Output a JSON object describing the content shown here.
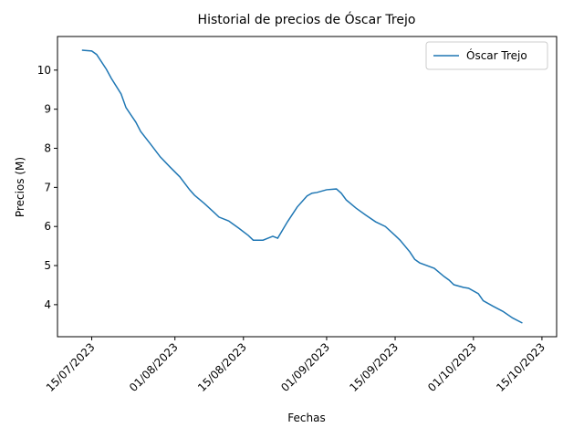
{
  "chart_data": {
    "type": "line",
    "title": "Historial de precios de Óscar Trejo",
    "x_label": "Fechas",
    "y_label": "Precios (M)",
    "x": [
      "13/07/2023",
      "15/07/2023",
      "16/07/2023",
      "18/07/2023",
      "19/07/2023",
      "21/07/2023",
      "22/07/2023",
      "24/07/2023",
      "25/07/2023",
      "27/07/2023",
      "29/07/2023",
      "31/07/2023",
      "02/08/2023",
      "04/08/2023",
      "05/08/2023",
      "07/08/2023",
      "09/08/2023",
      "10/08/2023",
      "12/08/2023",
      "14/08/2023",
      "16/08/2023",
      "17/08/2023",
      "19/08/2023",
      "20/08/2023",
      "21/08/2023",
      "22/08/2023",
      "24/08/2023",
      "26/08/2023",
      "28/08/2023",
      "29/08/2023",
      "30/08/2023",
      "01/09/2023",
      "03/09/2023",
      "04/09/2023",
      "05/09/2023",
      "07/09/2023",
      "09/09/2023",
      "11/09/2023",
      "13/09/2023",
      "15/09/2023",
      "16/09/2023",
      "18/09/2023",
      "19/09/2023",
      "20/09/2023",
      "23/09/2023",
      "25/09/2023",
      "26/09/2023",
      "27/09/2023",
      "29/09/2023",
      "30/09/2023",
      "02/10/2023",
      "03/10/2023",
      "05/10/2023",
      "07/10/2023",
      "09/10/2023",
      "11/10/2023"
    ],
    "series": [
      {
        "name": "Óscar Trejo",
        "color": "#1f77b4",
        "values": [
          10.51,
          10.49,
          10.4,
          10.02,
          9.79,
          9.39,
          9.04,
          8.67,
          8.43,
          8.11,
          7.78,
          7.52,
          7.27,
          6.94,
          6.8,
          6.59,
          6.36,
          6.24,
          6.14,
          5.96,
          5.77,
          5.65,
          5.65,
          5.7,
          5.75,
          5.7,
          6.12,
          6.5,
          6.78,
          6.85,
          6.87,
          6.94,
          6.96,
          6.85,
          6.68,
          6.47,
          6.29,
          6.12,
          6.0,
          5.77,
          5.65,
          5.35,
          5.16,
          5.07,
          4.93,
          4.72,
          4.63,
          4.51,
          4.44,
          4.42,
          4.28,
          4.1,
          3.96,
          3.83,
          3.66,
          3.53
        ]
      }
    ],
    "xlim": [
      "08/07/2023",
      "18/10/2023"
    ],
    "xticks": [
      "15/07/2023",
      "01/08/2023",
      "15/08/2023",
      "01/09/2023",
      "15/09/2023",
      "01/10/2023",
      "15/10/2023"
    ],
    "ylim": [
      3.18,
      10.86
    ],
    "yticks": [
      4,
      5,
      6,
      7,
      8,
      9,
      10
    ],
    "legend": "upper right"
  }
}
